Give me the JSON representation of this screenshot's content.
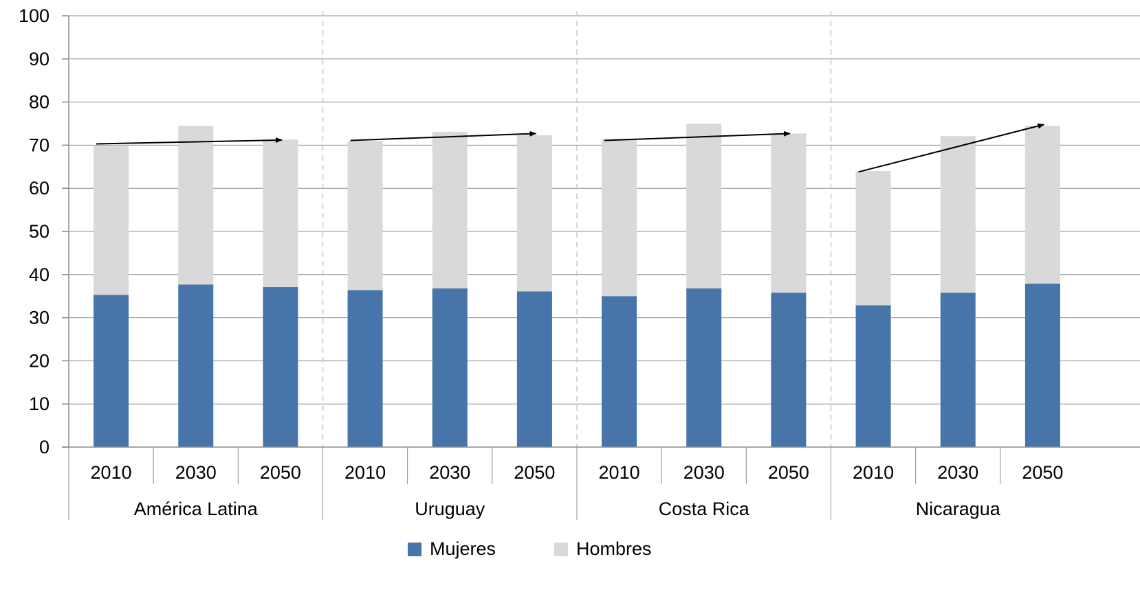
{
  "chart_data": {
    "type": "bar",
    "stacked": true,
    "title": "",
    "xlabel": "",
    "ylabel": "",
    "ylim": [
      0,
      100
    ],
    "yticks": [
      0,
      10,
      20,
      30,
      40,
      50,
      60,
      70,
      80,
      90,
      100
    ],
    "grid": true,
    "legend_position": "bottom",
    "groups": [
      {
        "name": "América Latina",
        "years": [
          "2010",
          "2030",
          "2050"
        ]
      },
      {
        "name": "Uruguay",
        "years": [
          "2010",
          "2030",
          "2050"
        ]
      },
      {
        "name": "Costa Rica",
        "years": [
          "2010",
          "2030",
          "2050"
        ]
      },
      {
        "name": "Nicaragua",
        "years": [
          "2010",
          "2030",
          "2050"
        ]
      }
    ],
    "series": [
      {
        "name": "Mujeres",
        "color": "#4774a9",
        "values": [
          35.3,
          37.7,
          37.1,
          36.4,
          36.8,
          36.1,
          35.0,
          36.8,
          35.8,
          32.9,
          35.8,
          37.9
        ]
      },
      {
        "name": "Hombres",
        "color": "#d9d9d9",
        "values": [
          34.5,
          36.8,
          34.2,
          34.6,
          36.3,
          36.2,
          36.5,
          38.2,
          36.9,
          31.1,
          36.3,
          36.6
        ]
      }
    ],
    "annotations": [
      {
        "type": "arrow",
        "group": "América Latina",
        "from": {
          "bar": "2010",
          "y": 70.3
        },
        "to": {
          "bar": "2050",
          "y": 71.2
        }
      },
      {
        "type": "arrow",
        "group": "Uruguay",
        "from": {
          "bar": "2010",
          "y": 71.1
        },
        "to": {
          "bar": "2050",
          "y": 72.7
        }
      },
      {
        "type": "arrow",
        "group": "Costa Rica",
        "from": {
          "bar": "2010",
          "y": 71.1
        },
        "to": {
          "bar": "2050",
          "y": 72.7
        }
      },
      {
        "type": "arrow",
        "group": "Nicaragua",
        "from": {
          "bar": "2010",
          "y": 63.8
        },
        "to": {
          "bar": "2050",
          "y": 74.8
        }
      }
    ]
  }
}
